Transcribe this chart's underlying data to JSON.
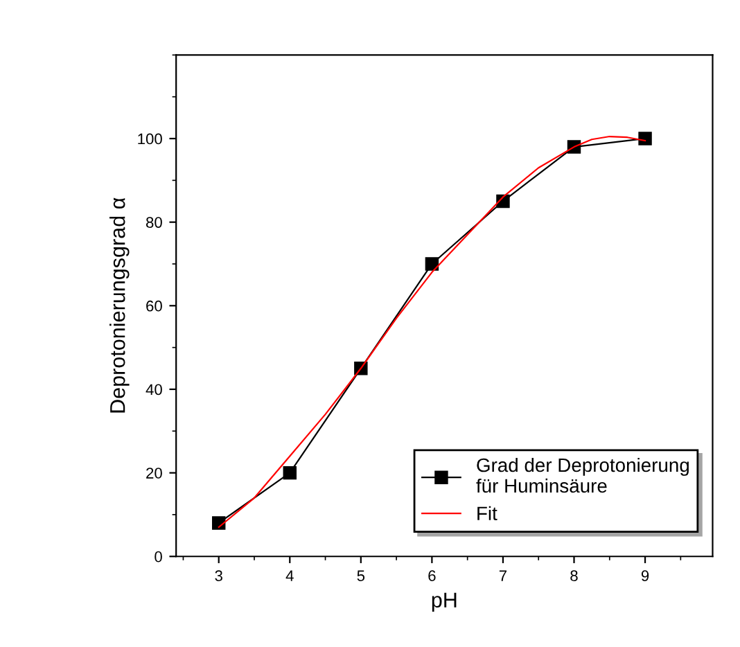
{
  "chart_data": {
    "type": "line",
    "xlabel": "pH",
    "ylabel": "Deprotonierungsgrad α",
    "xlim": [
      2.4,
      9.95
    ],
    "xticks": [
      3,
      4,
      5,
      6,
      7,
      8,
      9
    ],
    "ylim": [
      0,
      120
    ],
    "yticks": [
      0,
      20,
      40,
      60,
      80,
      100
    ],
    "grid": false,
    "legend": "bottom right",
    "series": [
      {
        "name": "Grad der Deprotonierung\nfür Huminsäure",
        "color": "#000000",
        "marker": "square",
        "x": [
          3,
          4,
          5,
          6,
          7,
          8,
          9
        ],
        "values": [
          8,
          20,
          45,
          70,
          85,
          98,
          100
        ]
      },
      {
        "name": "Fit",
        "color": "#ff0000",
        "marker": "none",
        "x": [
          3,
          3.5,
          4,
          4.5,
          5,
          5.5,
          6,
          6.5,
          7,
          7.5,
          8,
          8.25,
          8.5,
          8.75,
          9
        ],
        "values": [
          7,
          14,
          24,
          34,
          45,
          57,
          68,
          77,
          86,
          93,
          98,
          99.8,
          100.5,
          100.3,
          99.5
        ]
      }
    ]
  }
}
